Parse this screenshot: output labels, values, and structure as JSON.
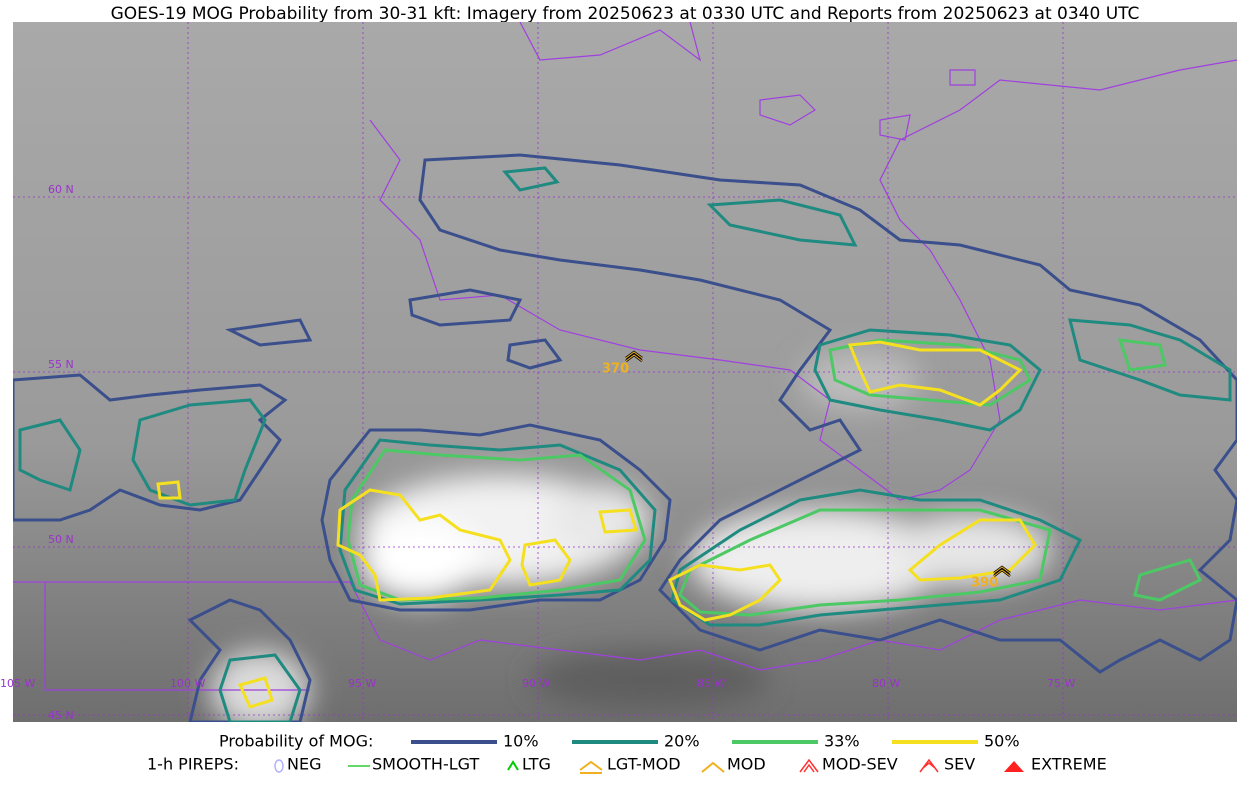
{
  "title": "GOES-19 MOG Probability from 30-31 kft: Imagery from 20250623 at 0330 UTC and Reports from 20250623 at 0340 UTC",
  "map": {
    "lat_labels": [
      "60 N",
      "55 N",
      "50 N",
      "45 N"
    ],
    "lon_labels": [
      "105 W",
      "100 W",
      "95 W",
      "90 W",
      "85 W",
      "80 W",
      "75 W"
    ],
    "reports": [
      "370",
      "390"
    ]
  },
  "legend": {
    "probability": {
      "label": "Probability of MOG:",
      "items": [
        {
          "label": "10%",
          "color": "#3a4f8c"
        },
        {
          "label": "20%",
          "color": "#1f8a80"
        },
        {
          "label": "33%",
          "color": "#4cc864"
        },
        {
          "label": "50%",
          "color": "#f5e020"
        }
      ]
    },
    "pireps": {
      "label": "1-h PIREPS:",
      "items": [
        "NEG",
        "SMOOTH-LGT",
        "LTG",
        "LGT-MOD",
        "MOD",
        "MOD-SEV",
        "SEV",
        "EXTREME"
      ]
    }
  }
}
